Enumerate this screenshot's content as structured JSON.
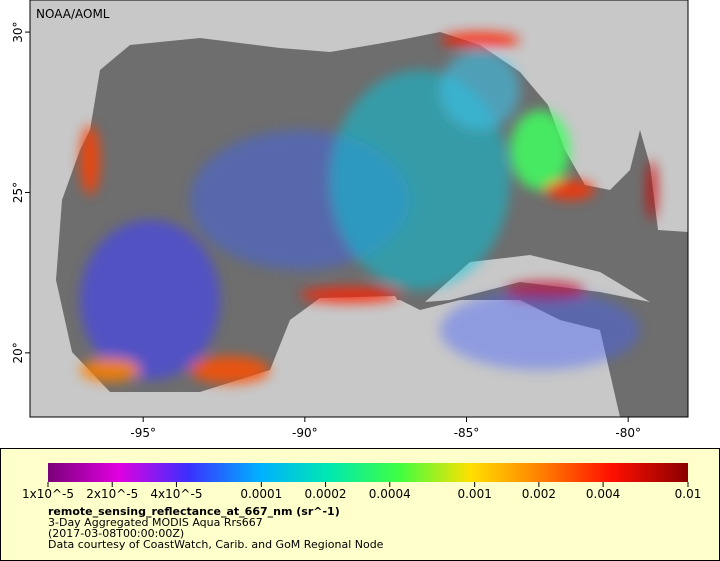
{
  "map": {
    "watermark": "NOAA/AOML",
    "xlim": [
      -98.5,
      -78.15
    ],
    "ylim": [
      18,
      31
    ],
    "xticks": [
      {
        "value": -95,
        "label": "-95°"
      },
      {
        "value": -90,
        "label": "-90°"
      },
      {
        "value": -85,
        "label": "-85°"
      },
      {
        "value": -80,
        "label": "-80°"
      }
    ],
    "yticks": [
      {
        "value": 20,
        "label": "20°"
      },
      {
        "value": 25,
        "label": "25°"
      },
      {
        "value": 30,
        "label": "30°"
      }
    ]
  },
  "colorbar": {
    "scale": "log",
    "lim": [
      1e-05,
      0.01
    ],
    "ticks": [
      {
        "value": 1e-05,
        "label": "1x10^-5"
      },
      {
        "value": 2e-05,
        "label": "2x10^-5"
      },
      {
        "value": 4e-05,
        "label": "4x10^-5"
      },
      {
        "value": 0.0001,
        "label": "0.0001"
      },
      {
        "value": 0.0002,
        "label": "0.0002"
      },
      {
        "value": 0.0004,
        "label": "0.0004"
      },
      {
        "value": 0.001,
        "label": "0.001"
      },
      {
        "value": 0.002,
        "label": "0.002"
      },
      {
        "value": 0.004,
        "label": "0.004"
      },
      {
        "value": 0.01,
        "label": "0.01"
      }
    ]
  },
  "legend": {
    "variable": "remote_sensing_reflectance_at_667_nm (sr^-1)",
    "dataset": "3-Day Aggregated MODIS Aqua Rrs667",
    "time": "(2017-03-08T00:00:00Z)",
    "credit": "Data courtesy of CoastWatch, Carib. and GoM Regional Node"
  }
}
